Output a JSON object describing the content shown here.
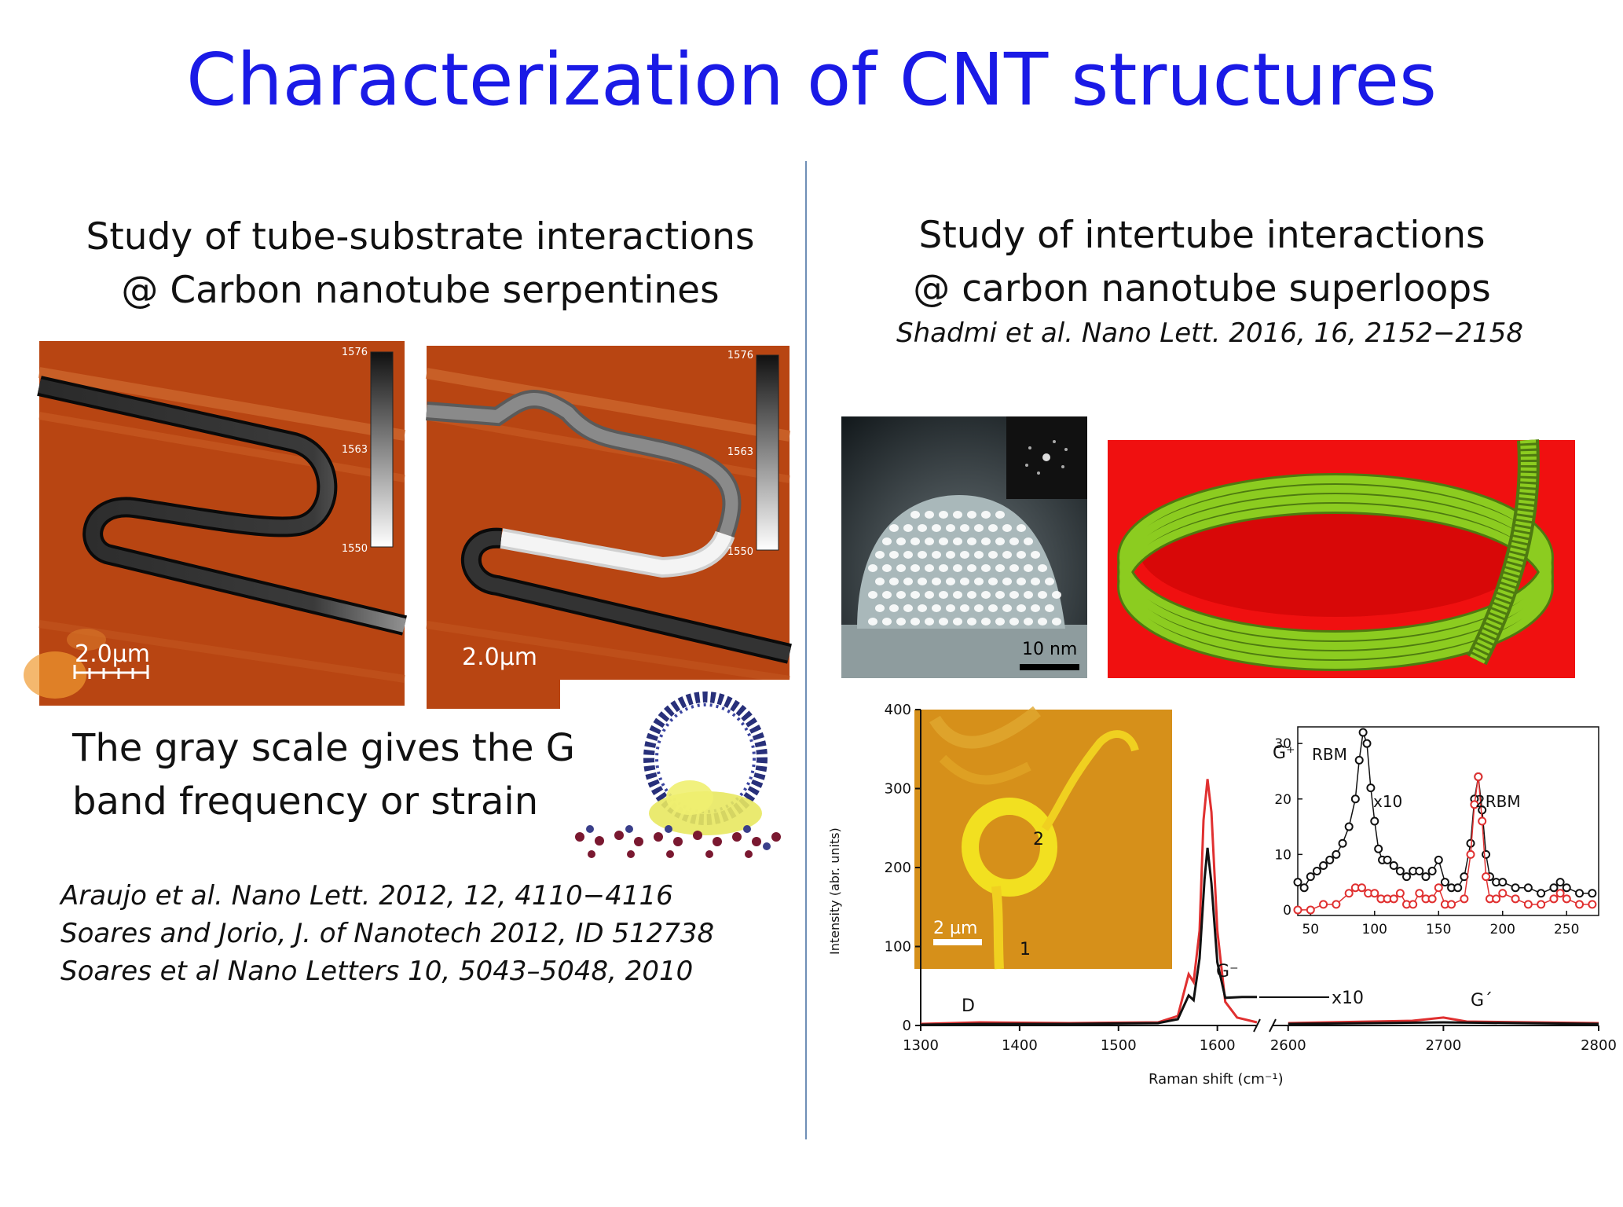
{
  "slide": {
    "title": "Characterization of CNT structures"
  },
  "left": {
    "heading_line1": "Study of tube-substrate interactions",
    "heading_line2": "@ Carbon nanotube serpentines",
    "scalebar_label": "2.0µm",
    "colorbar_ticks": [
      "1576",
      "1563",
      "1550"
    ],
    "caption_line1": "The gray scale gives the G",
    "caption_line2": "band frequency or strain",
    "refs": [
      "Araujo et al. Nano Lett. 2012, 12, 4110−4116",
      "Soares and Jorio, J. of Nanotech 2012, ID 512738",
      "Soares et al Nano Letters 10, 5043–5048, 2010"
    ]
  },
  "right": {
    "heading_line1": "Study of intertube interactions",
    "heading_line2": "@ carbon nanotube superloops",
    "ref": "Shadmi et al. Nano Lett. 2016, 16, 2152−2158",
    "tem_scalebar_label": "10 nm",
    "inset_scalebar_label": "2 µm",
    "inset_markers": [
      "1",
      "2"
    ],
    "peak_labels": {
      "g_plus": "G⁺",
      "g_minus": "G⁻",
      "d": "D",
      "g_prime": "G´",
      "x10_main": "x10",
      "rbm": "RBM",
      "x10_inset": "x10",
      "two_rbm": "2RBM"
    },
    "colors": {
      "afm_background": "#b84512",
      "superloop_background": "#f01010",
      "superloop_tube": "#8ccc20",
      "spectrum_black": "#111111",
      "spectrum_red": "#e03030"
    }
  },
  "chart_data": {
    "type": "line",
    "xlabel": "Raman shift (cm⁻¹)",
    "ylabel": "Intensity (abr. units)",
    "x_ticks": [
      "1300",
      "1400",
      "1500",
      "1600",
      "2600",
      "2700",
      "2800"
    ],
    "y_ticks": [
      "0",
      "100",
      "200",
      "300",
      "400"
    ],
    "ylim": [
      0,
      400
    ],
    "x_segments": [
      [
        1300,
        1640
      ],
      [
        2590,
        2800
      ]
    ],
    "series": [
      {
        "color": "red",
        "points": [
          [
            1300,
            2
          ],
          [
            1360,
            4
          ],
          [
            1450,
            3
          ],
          [
            1540,
            4
          ],
          [
            1560,
            12
          ],
          [
            1571,
            65
          ],
          [
            1576,
            55
          ],
          [
            1582,
            120
          ],
          [
            1586,
            260
          ],
          [
            1590,
            312
          ],
          [
            1594,
            270
          ],
          [
            1600,
            120
          ],
          [
            1608,
            30
          ],
          [
            1620,
            10
          ],
          [
            1640,
            4
          ],
          [
            2600,
            3
          ],
          [
            2680,
            6
          ],
          [
            2700,
            10
          ],
          [
            2715,
            5
          ],
          [
            2800,
            3
          ]
        ]
      },
      {
        "color": "black",
        "points": [
          [
            1300,
            1
          ],
          [
            1360,
            2
          ],
          [
            1450,
            2
          ],
          [
            1540,
            3
          ],
          [
            1560,
            8
          ],
          [
            1571,
            38
          ],
          [
            1576,
            32
          ],
          [
            1582,
            85
          ],
          [
            1587,
            185
          ],
          [
            1590,
            225
          ],
          [
            1594,
            180
          ],
          [
            1600,
            80
          ],
          [
            1608,
            35
          ],
          [
            1625,
            36
          ],
          [
            1640,
            36
          ],
          [
            2600,
            2
          ],
          [
            2700,
            4
          ],
          [
            2800,
            2
          ]
        ]
      }
    ],
    "inset": {
      "type": "scatter",
      "x_ticks": [
        "50",
        "100",
        "150",
        "200",
        "250"
      ],
      "y_ticks": [
        "0",
        "10",
        "20",
        "30"
      ],
      "xlim": [
        40,
        275
      ],
      "ylim": [
        -1,
        33
      ],
      "series": [
        {
          "color": "black",
          "points": [
            [
              40,
              5
            ],
            [
              45,
              4
            ],
            [
              50,
              6
            ],
            [
              55,
              7
            ],
            [
              60,
              8
            ],
            [
              65,
              9
            ],
            [
              70,
              10
            ],
            [
              75,
              12
            ],
            [
              80,
              15
            ],
            [
              85,
              20
            ],
            [
              88,
              27
            ],
            [
              91,
              32
            ],
            [
              94,
              30
            ],
            [
              97,
              22
            ],
            [
              100,
              16
            ],
            [
              103,
              11
            ],
            [
              106,
              9
            ],
            [
              110,
              9
            ],
            [
              115,
              8
            ],
            [
              120,
              7
            ],
            [
              125,
              6
            ],
            [
              130,
              7
            ],
            [
              135,
              7
            ],
            [
              140,
              6
            ],
            [
              145,
              7
            ],
            [
              150,
              9
            ],
            [
              155,
              5
            ],
            [
              160,
              4
            ],
            [
              165,
              4
            ],
            [
              170,
              6
            ],
            [
              175,
              12
            ],
            [
              178,
              20
            ],
            [
              181,
              24
            ],
            [
              184,
              18
            ],
            [
              187,
              10
            ],
            [
              190,
              6
            ],
            [
              195,
              5
            ],
            [
              200,
              5
            ],
            [
              210,
              4
            ],
            [
              220,
              4
            ],
            [
              230,
              3
            ],
            [
              240,
              4
            ],
            [
              245,
              5
            ],
            [
              250,
              4
            ],
            [
              260,
              3
            ],
            [
              270,
              3
            ]
          ]
        },
        {
          "color": "red",
          "points": [
            [
              40,
              0
            ],
            [
              50,
              0
            ],
            [
              60,
              1
            ],
            [
              70,
              1
            ],
            [
              80,
              3
            ],
            [
              85,
              4
            ],
            [
              90,
              4
            ],
            [
              95,
              3
            ],
            [
              100,
              3
            ],
            [
              105,
              2
            ],
            [
              110,
              2
            ],
            [
              115,
              2
            ],
            [
              120,
              3
            ],
            [
              125,
              1
            ],
            [
              130,
              1
            ],
            [
              135,
              3
            ],
            [
              140,
              2
            ],
            [
              145,
              2
            ],
            [
              150,
              4
            ],
            [
              155,
              1
            ],
            [
              160,
              1
            ],
            [
              170,
              2
            ],
            [
              175,
              10
            ],
            [
              178,
              19
            ],
            [
              181,
              24
            ],
            [
              184,
              16
            ],
            [
              187,
              6
            ],
            [
              190,
              2
            ],
            [
              195,
              2
            ],
            [
              200,
              3
            ],
            [
              210,
              2
            ],
            [
              220,
              1
            ],
            [
              230,
              1
            ],
            [
              240,
              2
            ],
            [
              245,
              3
            ],
            [
              250,
              2
            ],
            [
              260,
              1
            ],
            [
              270,
              1
            ]
          ]
        }
      ]
    }
  }
}
